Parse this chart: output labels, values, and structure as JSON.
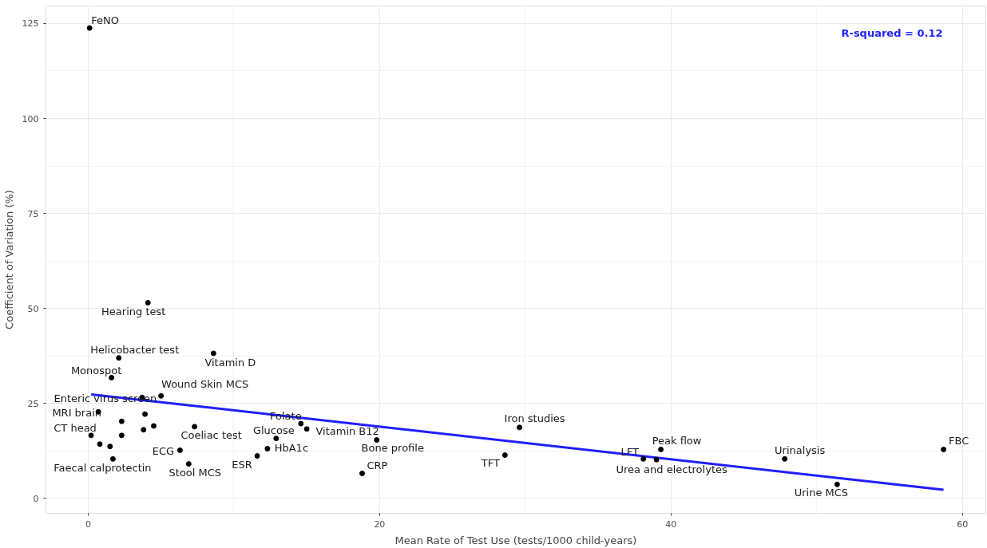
{
  "chart_data": {
    "type": "scatter",
    "xlabel": "Mean Rate of Test Use (tests/1000 child-years)",
    "ylabel": "Coefficient of Variation (%)",
    "xlim": [
      -2.9,
      61.6
    ],
    "ylim": [
      -3.9,
      129.6
    ],
    "xticks": [
      0,
      20,
      40,
      60
    ],
    "yticks": [
      0,
      25,
      50,
      75,
      100,
      125
    ],
    "grid": true,
    "series": [
      {
        "marker": "circle",
        "color": "#000000",
        "x": [
          0.1,
          4.1,
          2.1,
          8.6,
          1.6,
          5.0,
          3.7,
          0.7,
          0.2,
          1.7,
          7.3,
          6.3,
          6.9,
          11.6,
          12.3,
          12.9,
          14.6,
          15.0,
          19.8,
          18.8,
          28.6,
          29.6,
          38.1,
          39.0,
          39.3,
          47.8,
          51.4,
          58.7,
          2.3,
          3.9,
          3.8,
          4.5,
          2.3,
          0.8,
          1.5
        ],
        "values": [
          123.8,
          51.5,
          37.0,
          38.2,
          31.8,
          27.0,
          26.6,
          22.8,
          16.6,
          10.4,
          18.9,
          12.7,
          9.1,
          11.2,
          13.1,
          15.8,
          19.7,
          18.3,
          15.4,
          6.6,
          11.4,
          18.7,
          10.4,
          10.2,
          12.9,
          10.4,
          3.7,
          12.9,
          20.3,
          22.2,
          18.1,
          19.1,
          16.6,
          14.3,
          13.7
        ]
      },
      {
        "type": "line",
        "marker": "none",
        "color": "#1f1fff",
        "x": [
          0.2,
          58.7
        ],
        "values": [
          27.4,
          2.3
        ]
      }
    ],
    "annotations": [
      {
        "text": "FeNO",
        "x": 0.1,
        "y": 123.8
      },
      {
        "text": "Hearing test",
        "x": 4.1,
        "y": 51.5
      },
      {
        "text": "Helicobacter test",
        "x": 2.1,
        "y": 37.0
      },
      {
        "text": "Vitamin D",
        "x": 8.6,
        "y": 38.2
      },
      {
        "text": "Monospot",
        "x": 1.6,
        "y": 31.8
      },
      {
        "text": "Wound Skin MCS",
        "x": 5.0,
        "y": 27.0
      },
      {
        "text": "Enteric virus screen",
        "x": 3.7,
        "y": 26.6
      },
      {
        "text": "MRI brain",
        "x": 0.7,
        "y": 22.8
      },
      {
        "text": "CT head",
        "x": 0.2,
        "y": 16.6
      },
      {
        "text": "Faecal calprotectin",
        "x": 1.7,
        "y": 10.4
      },
      {
        "text": "Coeliac test",
        "x": 7.3,
        "y": 18.9
      },
      {
        "text": "ECG",
        "x": 6.3,
        "y": 12.7
      },
      {
        "text": "Stool MCS",
        "x": 6.9,
        "y": 9.1
      },
      {
        "text": "ESR",
        "x": 11.6,
        "y": 11.2
      },
      {
        "text": "HbA1c",
        "x": 12.3,
        "y": 13.1
      },
      {
        "text": "Glucose",
        "x": 12.9,
        "y": 15.8
      },
      {
        "text": "Folate",
        "x": 14.6,
        "y": 19.7
      },
      {
        "text": "Vitamin B12",
        "x": 15.0,
        "y": 18.3
      },
      {
        "text": "Bone profile",
        "x": 19.8,
        "y": 15.4
      },
      {
        "text": "CRP",
        "x": 18.8,
        "y": 6.6
      },
      {
        "text": "TFT",
        "x": 28.6,
        "y": 11.4
      },
      {
        "text": "Iron studies",
        "x": 29.6,
        "y": 18.7
      },
      {
        "text": "LFT",
        "x": 38.1,
        "y": 10.4
      },
      {
        "text": "Urea and electrolytes",
        "x": 39.0,
        "y": 10.2
      },
      {
        "text": "Peak flow",
        "x": 39.3,
        "y": 12.9
      },
      {
        "text": "Urinalysis",
        "x": 47.8,
        "y": 10.4
      },
      {
        "text": "Urine MCS",
        "x": 51.4,
        "y": 3.7
      },
      {
        "text": "FBC",
        "x": 58.7,
        "y": 12.9
      },
      "R-squared = 0.12"
    ]
  }
}
